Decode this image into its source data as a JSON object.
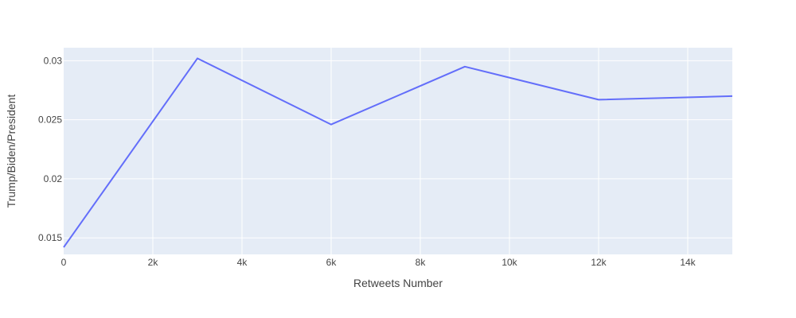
{
  "chart_data": {
    "type": "line",
    "title": "",
    "xlabel": "Retweets Number",
    "ylabel": "Trump/Biden/President",
    "xlim": [
      0,
      15000
    ],
    "ylim": [
      0.0136,
      0.0311
    ],
    "x_ticks": [
      {
        "value": 0,
        "label": "0"
      },
      {
        "value": 2000,
        "label": "2k"
      },
      {
        "value": 4000,
        "label": "4k"
      },
      {
        "value": 6000,
        "label": "6k"
      },
      {
        "value": 8000,
        "label": "8k"
      },
      {
        "value": 10000,
        "label": "10k"
      },
      {
        "value": 12000,
        "label": "12k"
      },
      {
        "value": 14000,
        "label": "14k"
      }
    ],
    "y_ticks": [
      {
        "value": 0.015,
        "label": "0.015"
      },
      {
        "value": 0.02,
        "label": "0.02"
      },
      {
        "value": 0.025,
        "label": "0.025"
      },
      {
        "value": 0.03,
        "label": "0.03"
      }
    ],
    "grid": true,
    "series": [
      {
        "color": "#636efa",
        "x": [
          0,
          3000,
          6000,
          9000,
          12000,
          15000
        ],
        "y": [
          0.0142,
          0.0302,
          0.0246,
          0.0295,
          0.0267,
          0.027
        ]
      }
    ],
    "colors": {
      "plot_background": "#e5ecf6",
      "grid": "#ffffff",
      "text": "#444444"
    }
  }
}
